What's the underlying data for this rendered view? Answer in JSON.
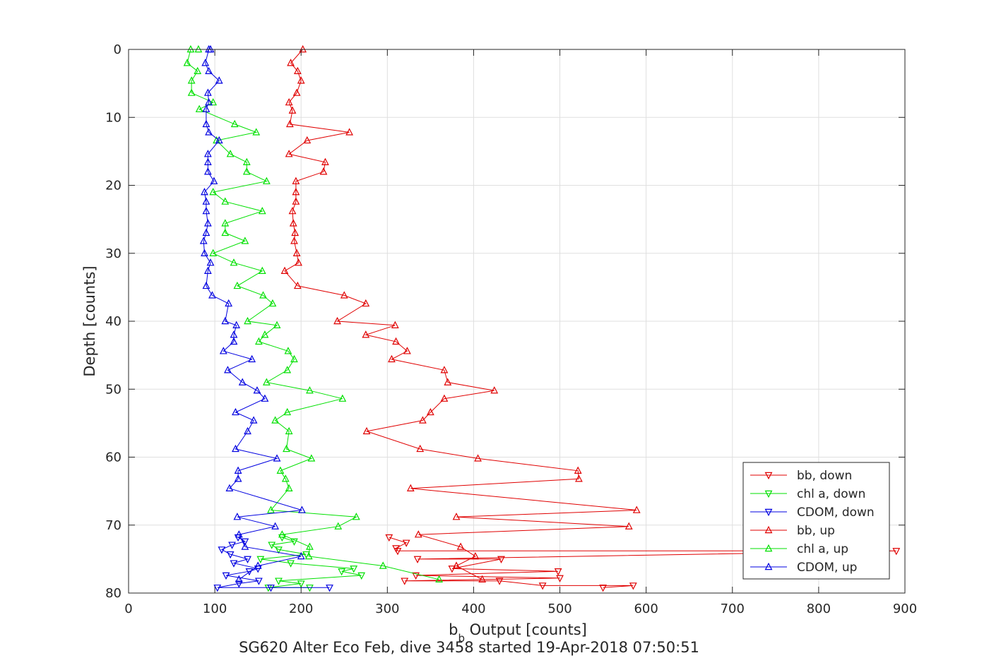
{
  "chart_data": {
    "type": "line",
    "title": "",
    "subtitle": "SG620 Alter Eco Feb, dive 3458 started 19-Apr-2018 07:50:51",
    "xlabel_main": "b",
    "xlabel_sub": "b",
    "xlabel_rest": " Output [counts]",
    "ylabel": "Depth [counts]",
    "xlim": [
      0,
      900
    ],
    "ylim": [
      0,
      80
    ],
    "y_reversed": true,
    "grid": true,
    "legend_position": "bottom-right",
    "xticks": [
      "0",
      "100",
      "200",
      "300",
      "400",
      "500",
      "600",
      "700",
      "800",
      "900"
    ],
    "yticks": [
      "0",
      "10",
      "20",
      "30",
      "40",
      "50",
      "60",
      "70",
      "80"
    ],
    "series": [
      {
        "name": "bb, down",
        "color": "#e00000",
        "marker": "triangle-down",
        "points": [
          [
            302,
            71.8
          ],
          [
            322,
            72.6
          ],
          [
            310,
            73.4
          ],
          [
            312,
            73.8
          ],
          [
            890,
            73.8
          ],
          [
            335,
            75
          ],
          [
            432,
            75
          ],
          [
            375,
            76.4
          ],
          [
            498,
            76.8
          ],
          [
            333,
            77.4
          ],
          [
            500,
            77.8
          ],
          [
            320,
            78.2
          ],
          [
            430,
            78.2
          ],
          [
            480,
            78.9
          ],
          [
            585,
            78.9
          ],
          [
            550,
            79.2
          ]
        ]
      },
      {
        "name": "chl a, down",
        "color": "#00e000",
        "marker": "triangle-down",
        "points": [
          [
            178,
            71.8
          ],
          [
            192,
            72.4
          ],
          [
            166,
            72.9
          ],
          [
            174,
            73.6
          ],
          [
            206,
            74.3
          ],
          [
            153,
            75
          ],
          [
            188,
            75.6
          ],
          [
            261,
            76.4
          ],
          [
            247,
            76.8
          ],
          [
            270,
            77.4
          ],
          [
            174,
            78.2
          ],
          [
            200,
            78.6
          ],
          [
            162,
            79.2
          ],
          [
            210,
            79.2
          ]
        ]
      },
      {
        "name": "CDOM, down",
        "color": "#0000e0",
        "marker": "triangle-down",
        "points": [
          [
            127,
            71.8
          ],
          [
            135,
            72.4
          ],
          [
            120,
            72.9
          ],
          [
            108,
            73.6
          ],
          [
            118,
            74.3
          ],
          [
            138,
            75
          ],
          [
            122,
            75.6
          ],
          [
            150,
            76.4
          ],
          [
            140,
            76.8
          ],
          [
            113,
            77.4
          ],
          [
            151,
            78.2
          ],
          [
            128,
            78.6
          ],
          [
            103,
            79.2
          ],
          [
            165,
            79.2
          ],
          [
            233,
            79.2
          ]
        ]
      },
      {
        "name": "bb, up",
        "color": "#e00000",
        "marker": "triangle-up",
        "points": [
          [
            202,
            0
          ],
          [
            188,
            2
          ],
          [
            196,
            3.2
          ],
          [
            200,
            4.6
          ],
          [
            195,
            6.4
          ],
          [
            186,
            7.8
          ],
          [
            190,
            9
          ],
          [
            187,
            11
          ],
          [
            256,
            12.2
          ],
          [
            207,
            13.4
          ],
          [
            186,
            15.4
          ],
          [
            228,
            16.6
          ],
          [
            226,
            18
          ],
          [
            194,
            19.4
          ],
          [
            194,
            21
          ],
          [
            194,
            22.4
          ],
          [
            190,
            23.8
          ],
          [
            191,
            25.6
          ],
          [
            193,
            27
          ],
          [
            192,
            28.2
          ],
          [
            195,
            30
          ],
          [
            197,
            31.4
          ],
          [
            181,
            32.6
          ],
          [
            196,
            34.8
          ],
          [
            250,
            36.2
          ],
          [
            275,
            37.4
          ],
          [
            242,
            40
          ],
          [
            309,
            40.6
          ],
          [
            275,
            42
          ],
          [
            310,
            43
          ],
          [
            323,
            44.4
          ],
          [
            305,
            45.6
          ],
          [
            366,
            47.2
          ],
          [
            370,
            49
          ],
          [
            424,
            50.2
          ],
          [
            366,
            51.4
          ],
          [
            350,
            53.4
          ],
          [
            341,
            54.6
          ],
          [
            276,
            56.2
          ],
          [
            338,
            58.8
          ],
          [
            405,
            60.2
          ],
          [
            521,
            62
          ],
          [
            522,
            63.2
          ],
          [
            327,
            64.6
          ],
          [
            589,
            67.8
          ],
          [
            380,
            68.8
          ],
          [
            580,
            70.2
          ],
          [
            336,
            71.4
          ],
          [
            385,
            73.2
          ],
          [
            402,
            74.6
          ],
          [
            380,
            76
          ],
          [
            410,
            78
          ]
        ]
      },
      {
        "name": "chl a, up",
        "color": "#00e000",
        "marker": "triangle-up",
        "points": [
          [
            81,
            0
          ],
          [
            72,
            0
          ],
          [
            68,
            2
          ],
          [
            80,
            3.2
          ],
          [
            73,
            4.6
          ],
          [
            73,
            6.4
          ],
          [
            98,
            7.8
          ],
          [
            82,
            8.8
          ],
          [
            123,
            11
          ],
          [
            148,
            12.2
          ],
          [
            102,
            13.4
          ],
          [
            118,
            15.4
          ],
          [
            137,
            16.6
          ],
          [
            137,
            18
          ],
          [
            160,
            19.4
          ],
          [
            98,
            21
          ],
          [
            112,
            22.4
          ],
          [
            155,
            23.8
          ],
          [
            112,
            25.6
          ],
          [
            112,
            27
          ],
          [
            135,
            28.2
          ],
          [
            98,
            30
          ],
          [
            122,
            31.4
          ],
          [
            155,
            32.6
          ],
          [
            126,
            34.8
          ],
          [
            156,
            36.2
          ],
          [
            167,
            37.4
          ],
          [
            138,
            40
          ],
          [
            172,
            40.6
          ],
          [
            158,
            42
          ],
          [
            151,
            43
          ],
          [
            185,
            44.4
          ],
          [
            192,
            45.6
          ],
          [
            184,
            47.2
          ],
          [
            160,
            49
          ],
          [
            210,
            50.2
          ],
          [
            248,
            51.4
          ],
          [
            184,
            53.4
          ],
          [
            170,
            54.6
          ],
          [
            186,
            56.2
          ],
          [
            183,
            58.8
          ],
          [
            212,
            60.2
          ],
          [
            176,
            62
          ],
          [
            182,
            63.2
          ],
          [
            186,
            64.6
          ],
          [
            165,
            67.8
          ],
          [
            264,
            68.8
          ],
          [
            243,
            70.2
          ],
          [
            178,
            71.4
          ],
          [
            210,
            73.2
          ],
          [
            209,
            74.6
          ],
          [
            295,
            76
          ],
          [
            360,
            78
          ]
        ]
      },
      {
        "name": "CDOM, up",
        "color": "#0000e0",
        "marker": "triangle-up",
        "points": [
          [
            95,
            0
          ],
          [
            93,
            0
          ],
          [
            89,
            2
          ],
          [
            93,
            3.2
          ],
          [
            105,
            4.6
          ],
          [
            92,
            6.4
          ],
          [
            93,
            7.8
          ],
          [
            90,
            8.8
          ],
          [
            90,
            11
          ],
          [
            93,
            12.2
          ],
          [
            105,
            13.4
          ],
          [
            92,
            15.4
          ],
          [
            92,
            16.6
          ],
          [
            92,
            18
          ],
          [
            99,
            19.4
          ],
          [
            88,
            21
          ],
          [
            90,
            22.4
          ],
          [
            90,
            23.8
          ],
          [
            92,
            25.6
          ],
          [
            90,
            27
          ],
          [
            87,
            28.2
          ],
          [
            88,
            30
          ],
          [
            95,
            31.4
          ],
          [
            92,
            32.6
          ],
          [
            90,
            34.8
          ],
          [
            97,
            36.2
          ],
          [
            116,
            37.4
          ],
          [
            112,
            40
          ],
          [
            125,
            40.6
          ],
          [
            122,
            42
          ],
          [
            122,
            43
          ],
          [
            110,
            44.4
          ],
          [
            143,
            45.6
          ],
          [
            115,
            47.2
          ],
          [
            132,
            49
          ],
          [
            149,
            50.2
          ],
          [
            158,
            51.4
          ],
          [
            124,
            53.4
          ],
          [
            145,
            54.6
          ],
          [
            138,
            56.2
          ],
          [
            124,
            58.8
          ],
          [
            172,
            60.2
          ],
          [
            127,
            62
          ],
          [
            127,
            63.2
          ],
          [
            117,
            64.6
          ],
          [
            201,
            67.8
          ],
          [
            126,
            68.8
          ],
          [
            170,
            70.2
          ],
          [
            128,
            71.4
          ],
          [
            135,
            73.2
          ],
          [
            200,
            74.6
          ],
          [
            150,
            76
          ],
          [
            128,
            78
          ]
        ]
      }
    ]
  }
}
